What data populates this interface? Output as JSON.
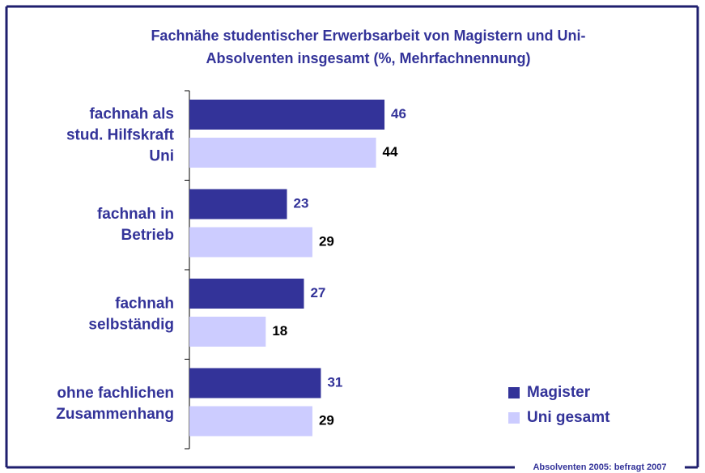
{
  "chart_data": {
    "type": "hbar",
    "title": "Fachnähe studentischer Erwerbsarbeit von Magistern und Uni-\nAbsolventen insgesamt (%, Mehrfachnennung)",
    "categories": [
      "fachnah als\nstud. Hilfskraft\nUni",
      "fachnah in\nBetrieb",
      "fachnah\nselbständig",
      "ohne fachlichen\nZusammenhang"
    ],
    "series": [
      {
        "name": "Magister",
        "color": "#333399",
        "values": [
          46,
          23,
          27,
          31
        ]
      },
      {
        "name": "Uni gesamt",
        "color": "#ccccff",
        "values": [
          44,
          29,
          18,
          29
        ]
      }
    ],
    "xlim": [
      0,
      100
    ],
    "legend": "right",
    "footnote": "Absolventen 2005: befragt 2007"
  }
}
